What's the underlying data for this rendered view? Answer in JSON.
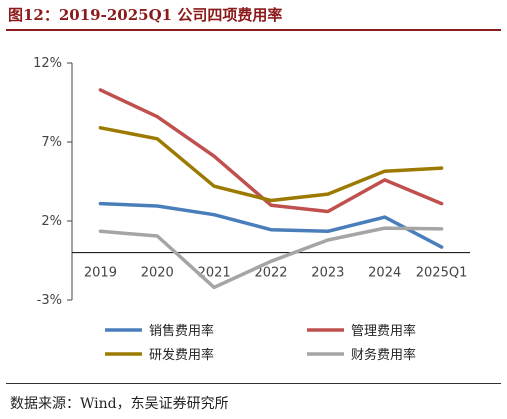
{
  "header": {
    "title": "图12：2019-2025Q1 公司四项费用率"
  },
  "footer": {
    "source": "数据来源：Wind，东吴证券研究所"
  },
  "chart_data": {
    "type": "line",
    "title": "",
    "xlabel": "",
    "ylabel": "",
    "categories": [
      "2019",
      "2020",
      "2021",
      "2022",
      "2023",
      "2024",
      "2025Q1"
    ],
    "ylim": [
      -3,
      12
    ],
    "yticks": [
      -3,
      2,
      7,
      12
    ],
    "ytick_labels": [
      "-3%",
      "2%",
      "7%",
      "12%"
    ],
    "grid": false,
    "legend_position": "bottom",
    "series": [
      {
        "name": "销售费用率",
        "color": "#4a7ebb",
        "values": [
          3.1,
          2.95,
          2.4,
          1.45,
          1.35,
          2.25,
          0.35
        ]
      },
      {
        "name": "管理费用率",
        "color": "#c0504d",
        "values": [
          10.3,
          8.6,
          6.1,
          3.0,
          2.6,
          4.6,
          3.1
        ]
      },
      {
        "name": "研发费用率",
        "color": "#9c7a00",
        "values": [
          7.9,
          7.2,
          4.2,
          3.3,
          3.7,
          5.15,
          5.35
        ]
      },
      {
        "name": "财务费用率",
        "color": "#a5a5a5",
        "values": [
          1.35,
          1.05,
          -2.2,
          -0.55,
          0.8,
          1.55,
          1.5
        ]
      }
    ]
  }
}
